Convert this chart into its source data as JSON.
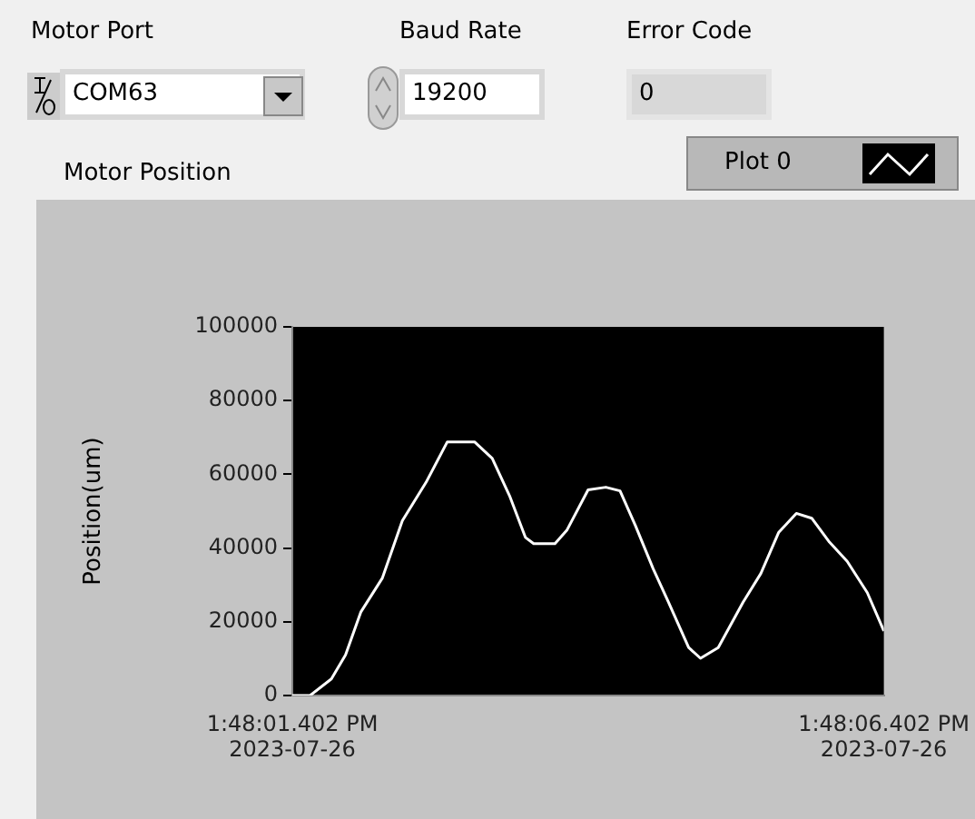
{
  "chart_data": {
    "type": "line",
    "title": "Motor Position",
    "ylabel": "Position(um)",
    "annotations": [
      "Motor Port",
      "COM63",
      "Baud Rate",
      "19200",
      "Error Code",
      "0"
    ],
    "x": [
      "2023-07-26T13:48:01.402",
      "2023-07-26T13:48:01.552",
      "2023-07-26T13:48:01.732",
      "2023-07-26T13:48:01.852",
      "2023-07-26T13:48:01.982",
      "2023-07-26T13:48:02.162",
      "2023-07-26T13:48:02.332",
      "2023-07-26T13:48:02.532",
      "2023-07-26T13:48:02.712",
      "2023-07-26T13:48:02.942",
      "2023-07-26T13:48:03.092",
      "2023-07-26T13:48:03.242",
      "2023-07-26T13:48:03.372",
      "2023-07-26T13:48:03.442",
      "2023-07-26T13:48:03.622",
      "2023-07-26T13:48:03.722",
      "2023-07-26T13:48:03.902",
      "2023-07-26T13:48:04.052",
      "2023-07-26T13:48:04.172",
      "2023-07-26T13:48:04.302",
      "2023-07-26T13:48:04.452",
      "2023-07-26T13:48:04.582",
      "2023-07-26T13:48:04.752",
      "2023-07-26T13:48:04.852",
      "2023-07-26T13:48:05.002",
      "2023-07-26T13:48:05.212",
      "2023-07-26T13:48:05.362",
      "2023-07-26T13:48:05.512",
      "2023-07-26T13:48:05.662",
      "2023-07-26T13:48:05.792",
      "2023-07-26T13:48:05.942",
      "2023-07-26T13:48:06.092",
      "2023-07-26T13:48:06.262",
      "2023-07-26T13:48:06.402"
    ],
    "series": [
      {
        "name": "Plot 0",
        "color": "#ffffff",
        "values": [
          0,
          0,
          4500,
          11000,
          22700,
          31800,
          47400,
          57800,
          68800,
          68800,
          64300,
          53900,
          42900,
          41200,
          41200,
          44800,
          55800,
          56500,
          55500,
          46100,
          34400,
          25300,
          13000,
          10100,
          13000,
          25300,
          33100,
          44200,
          49400,
          48100,
          41600,
          36400,
          27900,
          17500
        ]
      }
    ],
    "xlim": [
      "2023-07-26T13:48:01.402",
      "2023-07-26T13:48:06.402"
    ],
    "xticks": [
      {
        "value": "2023-07-26T13:48:01.402",
        "label": "1:48:01.402 PM\n2023-07-26"
      },
      {
        "value": "2023-07-26T13:48:06.402",
        "label": "1:48:06.402 PM\n2023-07-26"
      }
    ],
    "ylim": [
      0,
      100000
    ],
    "yticks": [
      0,
      20000,
      40000,
      60000,
      80000,
      100000
    ],
    "grid": false,
    "legend": "top right",
    "marker": "none",
    "line_style": "solid"
  }
}
